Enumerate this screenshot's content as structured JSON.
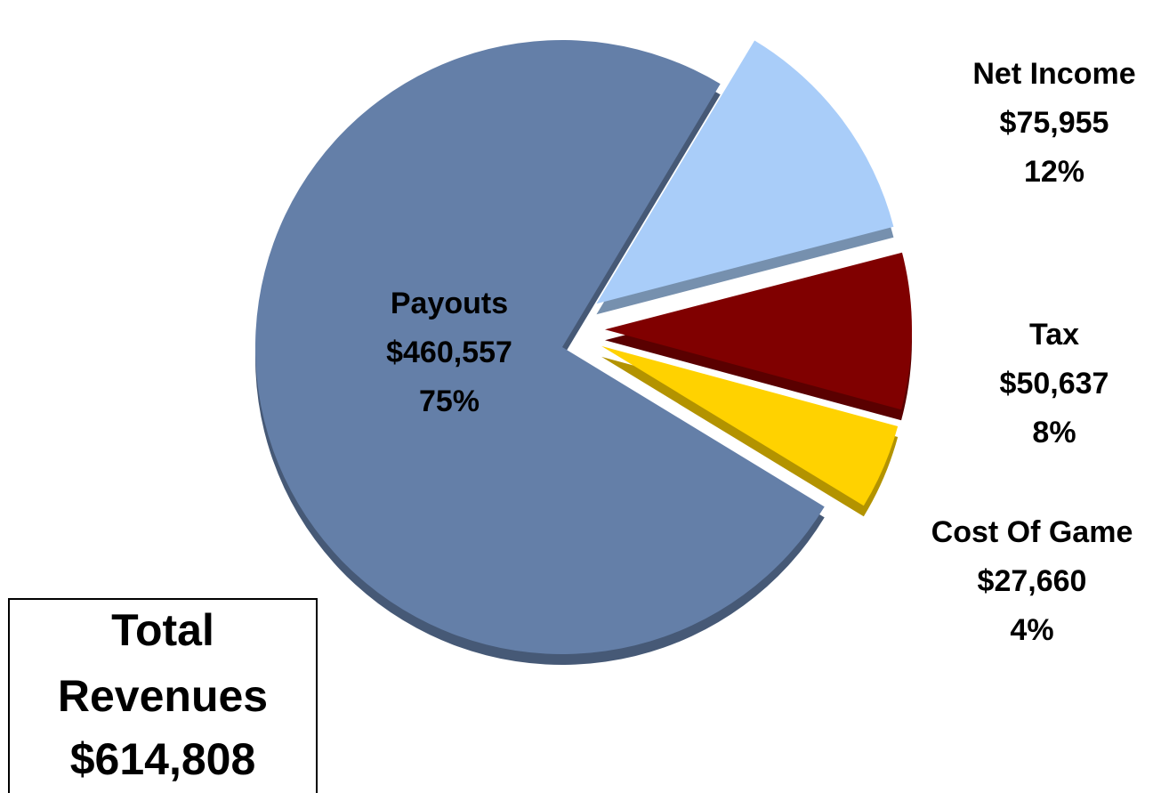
{
  "chart_data": {
    "type": "pie",
    "categories": [
      "Payouts",
      "Net Income",
      "Tax",
      "Cost Of Game"
    ],
    "values": [
      460557,
      75955,
      50637,
      27660
    ],
    "value_labels": [
      "$460,557",
      "$75,955",
      "$50,637",
      "$27,660"
    ],
    "percent_labels": [
      "75%",
      "12%",
      "8%",
      "4%"
    ],
    "colors": [
      "#647fa8",
      "#a9cdf9",
      "#800000",
      "#ffd200"
    ],
    "total_lines": [
      "Total",
      "Revenues"
    ],
    "total_value": "$614,808"
  }
}
